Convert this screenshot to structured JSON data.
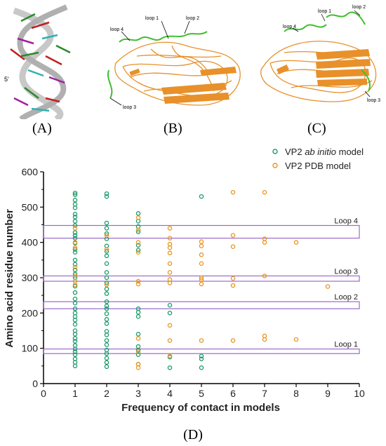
{
  "panels": {
    "a_label": "(A)",
    "b_label": "(B)",
    "c_label": "(C)",
    "d_label": "(D)",
    "a_five_prime": "5'",
    "b_loops": [
      "loop 1",
      "loop 2",
      "loop 3",
      "loop 4"
    ],
    "c_loops": [
      "loop 1",
      "loop 2",
      "loop 3",
      "loop 4"
    ]
  },
  "colors": {
    "ab_initio": "#1a9a6a",
    "pdb": "#e8941e",
    "loop_box": "#9b6bc8",
    "protein_orange": "#e8902a",
    "loop_green": "#3fbf2f"
  },
  "chart_data": {
    "type": "scatter",
    "xlabel": "Frequency of contact in models",
    "ylabel": "Amino acid residue number",
    "xlim": [
      0,
      10
    ],
    "ylim": [
      0,
      600
    ],
    "xticks": [
      0,
      1,
      2,
      3,
      4,
      5,
      6,
      7,
      8,
      9,
      10
    ],
    "yticks": [
      0,
      100,
      200,
      300,
      400,
      500,
      600
    ],
    "grid": false,
    "legend_position": "top-right",
    "series": [
      {
        "name": "VP2 ab initio model",
        "name_parts": [
          "VP2 ",
          "ab initio",
          " model"
        ],
        "marker": "open-circle",
        "points": [
          [
            1,
            50
          ],
          [
            1,
            60
          ],
          [
            1,
            70
          ],
          [
            1,
            82
          ],
          [
            1,
            90
          ],
          [
            1,
            98
          ],
          [
            1,
            108
          ],
          [
            1,
            120
          ],
          [
            1,
            128
          ],
          [
            1,
            140
          ],
          [
            1,
            150
          ],
          [
            1,
            168
          ],
          [
            1,
            180
          ],
          [
            1,
            190
          ],
          [
            1,
            200
          ],
          [
            1,
            212
          ],
          [
            1,
            228
          ],
          [
            1,
            240
          ],
          [
            1,
            258
          ],
          [
            1,
            276
          ],
          [
            1,
            300
          ],
          [
            1,
            310
          ],
          [
            1,
            322
          ],
          [
            1,
            338
          ],
          [
            1,
            350
          ],
          [
            1,
            372
          ],
          [
            1,
            380
          ],
          [
            1,
            398
          ],
          [
            1,
            412
          ],
          [
            1,
            420
          ],
          [
            1,
            428
          ],
          [
            1,
            448
          ],
          [
            1,
            460
          ],
          [
            1,
            472
          ],
          [
            1,
            480
          ],
          [
            1,
            498
          ],
          [
            1,
            508
          ],
          [
            1,
            520
          ],
          [
            1,
            535
          ],
          [
            1,
            540
          ],
          [
            2,
            48
          ],
          [
            2,
            60
          ],
          [
            2,
            72
          ],
          [
            2,
            85
          ],
          [
            2,
            95
          ],
          [
            2,
            110
          ],
          [
            2,
            122
          ],
          [
            2,
            138
          ],
          [
            2,
            148
          ],
          [
            2,
            170
          ],
          [
            2,
            182
          ],
          [
            2,
            198
          ],
          [
            2,
            212
          ],
          [
            2,
            220
          ],
          [
            2,
            232
          ],
          [
            2,
            255
          ],
          [
            2,
            268
          ],
          [
            2,
            285
          ],
          [
            2,
            300
          ],
          [
            2,
            315
          ],
          [
            2,
            340
          ],
          [
            2,
            362
          ],
          [
            2,
            375
          ],
          [
            2,
            390
          ],
          [
            2,
            410
          ],
          [
            2,
            425
          ],
          [
            2,
            440
          ],
          [
            2,
            455
          ],
          [
            2,
            530
          ],
          [
            2,
            538
          ],
          [
            3,
            55
          ],
          [
            3,
            82
          ],
          [
            3,
            95
          ],
          [
            3,
            105
          ],
          [
            3,
            140
          ],
          [
            3,
            190
          ],
          [
            3,
            202
          ],
          [
            3,
            212
          ],
          [
            3,
            378
          ],
          [
            3,
            392
          ],
          [
            3,
            430
          ],
          [
            3,
            445
          ],
          [
            3,
            460
          ],
          [
            3,
            482
          ],
          [
            4,
            45
          ],
          [
            4,
            75
          ],
          [
            4,
            200
          ],
          [
            4,
            222
          ],
          [
            5,
            45
          ],
          [
            5,
            70
          ],
          [
            5,
            78
          ],
          [
            5,
            530
          ]
        ]
      },
      {
        "name": "VP2 PDB model",
        "marker": "open-circle",
        "points": [
          [
            1,
            280
          ],
          [
            1,
            290
          ],
          [
            1,
            305
          ],
          [
            1,
            330
          ],
          [
            1,
            385
          ],
          [
            1,
            400
          ],
          [
            1,
            440
          ],
          [
            2,
            280
          ],
          [
            2,
            380
          ],
          [
            2,
            420
          ],
          [
            3,
            45
          ],
          [
            3,
            55
          ],
          [
            3,
            90
          ],
          [
            3,
            128
          ],
          [
            3,
            282
          ],
          [
            3,
            290
          ],
          [
            3,
            372
          ],
          [
            3,
            400
          ],
          [
            3,
            435
          ],
          [
            3,
            470
          ],
          [
            4,
            78
          ],
          [
            4,
            122
          ],
          [
            4,
            165
          ],
          [
            4,
            285
          ],
          [
            4,
            295
          ],
          [
            4,
            315
          ],
          [
            4,
            340
          ],
          [
            4,
            370
          ],
          [
            4,
            385
          ],
          [
            4,
            395
          ],
          [
            4,
            412
          ],
          [
            4,
            440
          ],
          [
            5,
            122
          ],
          [
            5,
            282
          ],
          [
            5,
            295
          ],
          [
            5,
            300
          ],
          [
            5,
            340
          ],
          [
            5,
            365
          ],
          [
            5,
            390
          ],
          [
            5,
            402
          ],
          [
            6,
            122
          ],
          [
            6,
            278
          ],
          [
            6,
            298
          ],
          [
            6,
            388
          ],
          [
            6,
            420
          ],
          [
            6,
            542
          ],
          [
            7,
            125
          ],
          [
            7,
            135
          ],
          [
            7,
            305
          ],
          [
            7,
            400
          ],
          [
            7,
            410
          ],
          [
            7,
            542
          ],
          [
            8,
            125
          ],
          [
            8,
            400
          ],
          [
            9,
            275
          ]
        ]
      }
    ],
    "regions": [
      {
        "label": "Loop 4",
        "y_range": [
          412,
          448
        ]
      },
      {
        "label": "Loop 3",
        "y_range": [
          290,
          305
        ]
      },
      {
        "label": "Loop 2",
        "y_range": [
          212,
          232
        ]
      },
      {
        "label": "Loop 1",
        "y_range": [
          85,
          98
        ]
      }
    ]
  }
}
